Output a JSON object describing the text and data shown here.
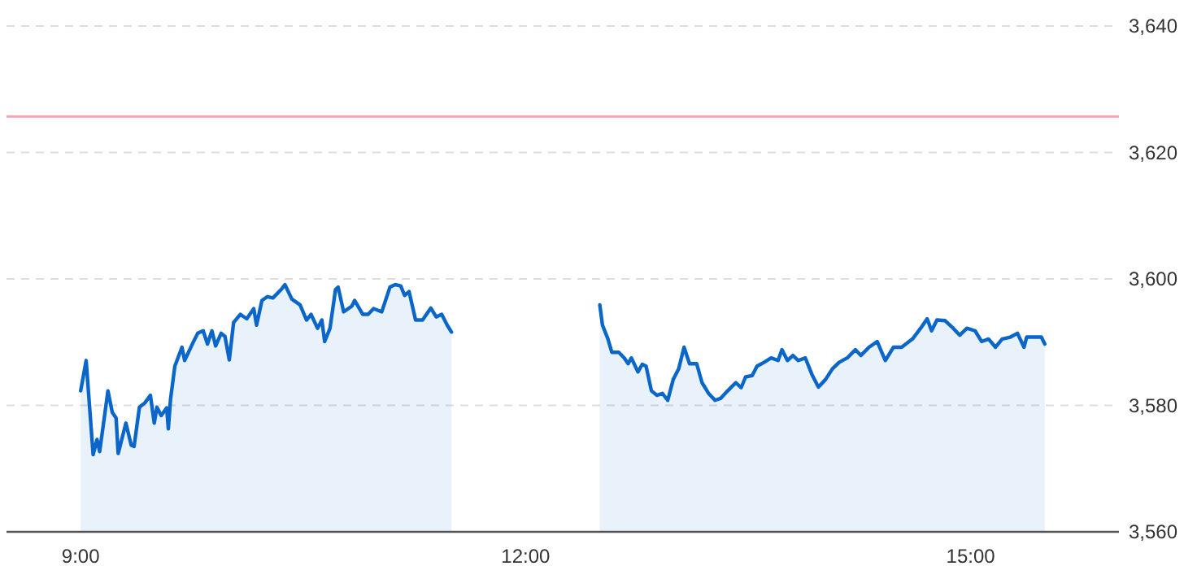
{
  "chart_data": {
    "type": "area",
    "x": [
      9.0,
      9.037,
      9.084,
      9.11,
      9.128,
      9.184,
      9.213,
      9.239,
      9.253,
      9.305,
      9.341,
      9.36,
      9.396,
      9.433,
      9.47,
      9.496,
      9.514,
      9.543,
      9.58,
      9.591,
      9.606,
      9.635,
      9.683,
      9.701,
      9.753,
      9.789,
      9.826,
      9.855,
      9.885,
      9.91,
      9.947,
      9.973,
      10.002,
      10.031,
      10.076,
      10.12,
      10.167,
      10.186,
      10.222,
      10.259,
      10.296,
      10.351,
      10.377,
      10.424,
      10.479,
      10.523,
      10.553,
      10.597,
      10.626,
      10.645,
      10.681,
      10.718,
      10.736,
      10.773,
      10.828,
      10.847,
      10.902,
      10.938,
      10.975,
      11.03,
      11.085,
      11.121,
      11.158,
      11.184,
      11.214,
      11.258,
      11.305,
      11.361,
      11.397,
      11.434,
      11.471,
      11.5,
      12.0,
      12.5,
      12.518,
      12.555,
      12.581,
      12.628,
      12.665,
      12.691,
      12.713,
      12.757,
      12.786,
      12.812,
      12.848,
      12.885,
      12.922,
      12.958,
      12.995,
      13.032,
      13.068,
      13.105,
      13.153,
      13.189,
      13.233,
      13.277,
      13.314,
      13.362,
      13.417,
      13.453,
      13.483,
      13.527,
      13.56,
      13.607,
      13.655,
      13.702,
      13.728,
      13.765,
      13.802,
      13.838,
      13.886,
      13.93,
      13.974,
      14.022,
      14.069,
      14.113,
      14.168,
      14.223,
      14.26,
      14.315,
      14.37,
      14.425,
      14.48,
      14.535,
      14.608,
      14.663,
      14.707,
      14.737,
      14.773,
      14.828,
      14.883,
      14.927,
      14.975,
      15.03,
      15.074,
      15.121,
      15.168,
      15.213,
      15.268,
      15.316,
      15.36,
      15.378,
      15.433,
      15.477,
      15.5
    ],
    "series": [
      {
        "color": "#0a66c8",
        "values": [
          3582.3,
          3587.1,
          3572.2,
          3574.6,
          3572.7,
          3582.3,
          3578.9,
          3578.0,
          3572.4,
          3577.2,
          3573.7,
          3573.5,
          3579.7,
          3580.4,
          3581.6,
          3577.2,
          3579.7,
          3578.4,
          3579.6,
          3576.3,
          3581.0,
          3586.2,
          3589.2,
          3587.1,
          3589.7,
          3591.4,
          3591.8,
          3589.7,
          3591.8,
          3589.4,
          3591.4,
          3590.9,
          3587.2,
          3593.1,
          3594.4,
          3593.7,
          3595.3,
          3592.7,
          3596.6,
          3597.2,
          3597.0,
          3598.3,
          3599.1,
          3596.8,
          3595.9,
          3593.5,
          3594.4,
          3592.2,
          3593.5,
          3590.1,
          3592.2,
          3598.3,
          3598.7,
          3594.8,
          3595.7,
          3596.6,
          3594.4,
          3594.4,
          3595.3,
          3594.8,
          3598.7,
          3599.1,
          3598.9,
          3597.4,
          3598.0,
          3593.5,
          3593.5,
          3595.4,
          3594.0,
          3594.4,
          3592.7,
          3591.6,
          null,
          3595.9,
          3592.7,
          3590.5,
          3588.4,
          3588.4,
          3587.5,
          3586.6,
          3587.5,
          3585.3,
          3586.5,
          3586.2,
          3582.3,
          3581.6,
          3581.9,
          3580.8,
          3584.1,
          3585.8,
          3589.2,
          3586.6,
          3586.6,
          3583.6,
          3581.9,
          3580.8,
          3581.1,
          3582.3,
          3583.6,
          3582.8,
          3584.5,
          3584.7,
          3586.2,
          3586.8,
          3587.5,
          3587.1,
          3588.8,
          3587.1,
          3587.9,
          3587.1,
          3587.5,
          3584.9,
          3582.9,
          3584.1,
          3585.8,
          3586.8,
          3587.5,
          3588.8,
          3587.9,
          3589.2,
          3590.1,
          3587.1,
          3589.2,
          3589.2,
          3590.5,
          3592.2,
          3593.7,
          3591.8,
          3593.5,
          3593.4,
          3592.2,
          3591.1,
          3592.2,
          3591.8,
          3590.1,
          3590.5,
          3589.2,
          3590.5,
          3590.8,
          3591.4,
          3589.2,
          3590.8,
          3590.8,
          3590.8,
          3589.7
        ]
      }
    ],
    "xlim": [
      8.5,
      16
    ],
    "xticks": [
      {
        "value": 9,
        "label": "9:00"
      },
      {
        "value": 12,
        "label": "12:00"
      },
      {
        "value": 15,
        "label": "15:00"
      }
    ],
    "ylim": [
      3560,
      3640
    ],
    "yticks": [
      {
        "value": 3560,
        "label": "3,560"
      },
      {
        "value": 3580,
        "label": "3,580"
      },
      {
        "value": 3600,
        "label": "3,600"
      },
      {
        "value": 3620,
        "label": "3,620"
      },
      {
        "value": 3640,
        "label": "3,640"
      }
    ],
    "ref_lines": [
      {
        "axis": "y",
        "value": 3625.7,
        "color": "#f5a3b3"
      }
    ],
    "grid": "y"
  }
}
